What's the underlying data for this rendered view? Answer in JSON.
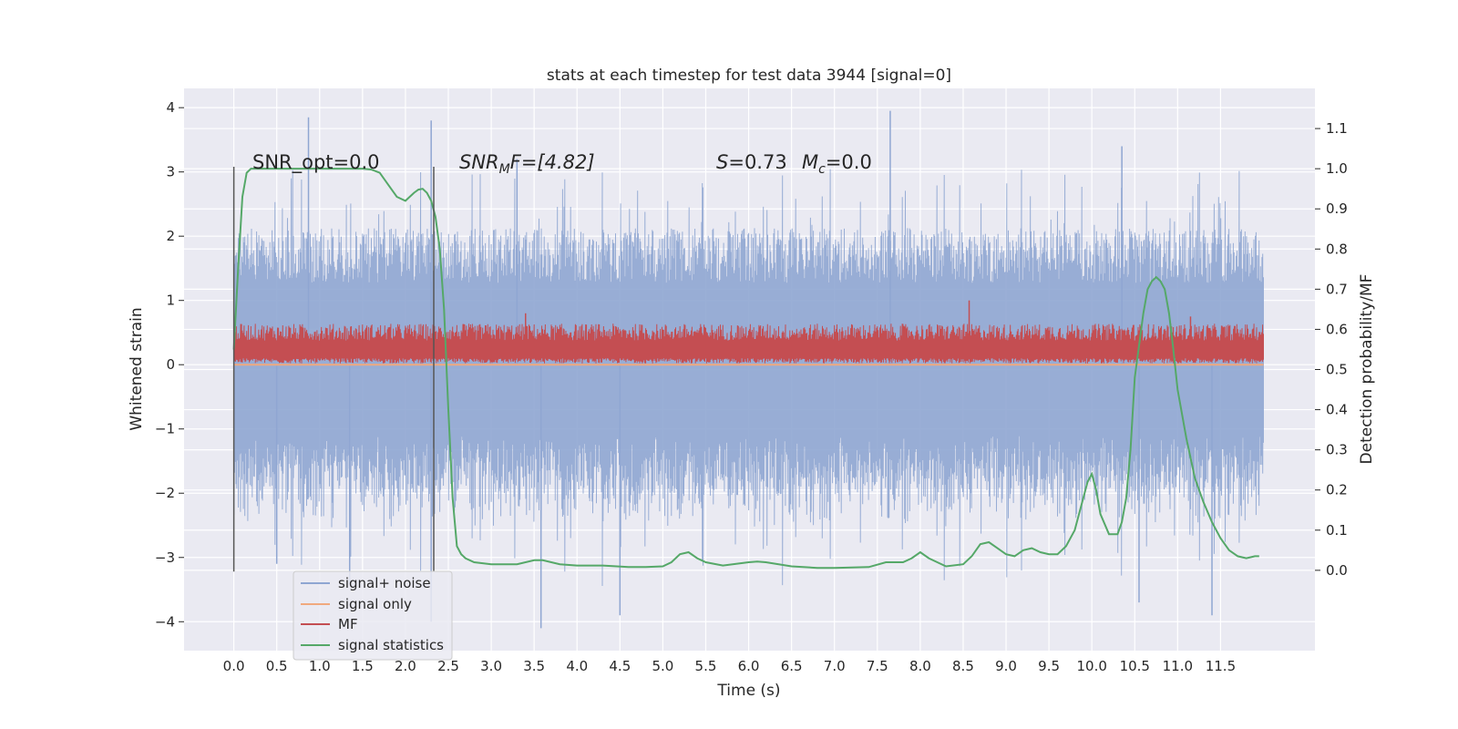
{
  "chart_data": {
    "type": "line",
    "title": "stats at each timestep for test data 3944 [signal=0]",
    "xlabel": "Time (s)",
    "ylabel": "Whitened strain",
    "y2label": "Detection probability/MF",
    "xlim": [
      -0.58,
      12.6
    ],
    "ylim": [
      -4.45,
      4.3
    ],
    "y2lim": [
      -0.2,
      1.2
    ],
    "xticks": [
      "0.0",
      "0.5",
      "1.0",
      "1.5",
      "2.0",
      "2.5",
      "3.0",
      "3.5",
      "4.0",
      "4.5",
      "5.0",
      "5.5",
      "6.0",
      "6.5",
      "7.0",
      "7.5",
      "8.0",
      "8.5",
      "9.0",
      "9.5",
      "10.0",
      "10.5",
      "11.0",
      "11.5"
    ],
    "yticks": [
      "−4",
      "−3",
      "−2",
      "−1",
      "0",
      "1",
      "2",
      "3",
      "4"
    ],
    "y2ticks": [
      "0.0",
      "0.1",
      "0.2",
      "0.3",
      "0.4",
      "0.5",
      "0.6",
      "0.7",
      "0.8",
      "0.9",
      "1.0",
      "1.1"
    ],
    "grid": true,
    "legend_position": "lower-left",
    "annotations": {
      "snr_opt": "SNR_opt=0.0",
      "snr_mf_prefix": "SNR",
      "snr_mf_sub": "M",
      "snr_mf_rest": "F=[4.82]",
      "s_var": "S",
      "s_rest": "=0.73",
      "mc_var": "M",
      "mc_sub": "c",
      "mc_rest": "=0.0"
    },
    "vlines": [
      0.0,
      2.33
    ],
    "series": [
      {
        "name": "signal+ noise",
        "color": "#8fa6d2",
        "axis": "left",
        "style": "noise",
        "x_range": [
          0.0,
          12.0
        ],
        "amplitude": 1.7,
        "peaks": [
          [
            0.87,
            3.85
          ],
          [
            0.5,
            -3.1
          ],
          [
            2.3,
            3.8
          ],
          [
            2.3,
            -4.0
          ],
          [
            3.58,
            -4.1
          ],
          [
            7.65,
            3.95
          ],
          [
            11.4,
            -3.9
          ],
          [
            10.35,
            3.4
          ],
          [
            10.55,
            -3.7
          ],
          [
            4.5,
            -3.9
          ],
          [
            1.35,
            -3.4
          ],
          [
            3.3,
            3.2
          ]
        ]
      },
      {
        "name": "signal only",
        "color": "#f0a97e",
        "axis": "left",
        "style": "line",
        "x": [
          0.0,
          12.0
        ],
        "y": [
          0.0,
          0.0
        ]
      },
      {
        "name": "MF",
        "color": "#c44e52",
        "axis": "left",
        "style": "band",
        "x_range": [
          0.0,
          12.0
        ],
        "band": [
          0.02,
          0.58
        ],
        "peaks": [
          [
            8.57,
            1.0
          ],
          [
            3.4,
            0.8
          ],
          [
            11.15,
            0.75
          ]
        ]
      },
      {
        "name": "signal statistics",
        "color": "#55a868",
        "axis": "right",
        "style": "line",
        "x": [
          0.0,
          0.05,
          0.1,
          0.15,
          0.2,
          0.3,
          0.5,
          0.8,
          1.0,
          1.3,
          1.5,
          1.6,
          1.7,
          1.8,
          1.9,
          2.0,
          2.05,
          2.1,
          2.15,
          2.2,
          2.25,
          2.3,
          2.35,
          2.4,
          2.45,
          2.5,
          2.55,
          2.6,
          2.65,
          2.7,
          2.8,
          3.0,
          3.3,
          3.5,
          3.6,
          3.8,
          4.0,
          4.3,
          4.6,
          4.8,
          5.0,
          5.1,
          5.2,
          5.3,
          5.4,
          5.5,
          5.7,
          6.0,
          6.1,
          6.2,
          6.5,
          6.8,
          7.0,
          7.4,
          7.6,
          7.8,
          7.9,
          8.0,
          8.1,
          8.3,
          8.5,
          8.6,
          8.7,
          8.8,
          8.9,
          9.0,
          9.1,
          9.2,
          9.3,
          9.4,
          9.5,
          9.6,
          9.7,
          9.8,
          9.9,
          9.95,
          10.0,
          10.05,
          10.1,
          10.2,
          10.3,
          10.35,
          10.4,
          10.45,
          10.5,
          10.6,
          10.65,
          10.7,
          10.75,
          10.8,
          10.85,
          10.9,
          10.95,
          11.0,
          11.1,
          11.2,
          11.3,
          11.4,
          11.5,
          11.6,
          11.7,
          11.8,
          11.9,
          11.95
        ],
        "y": [
          0.55,
          0.75,
          0.93,
          0.99,
          1.0,
          1.0,
          1.0,
          1.0,
          1.0,
          1.0,
          1.0,
          0.998,
          0.99,
          0.96,
          0.93,
          0.92,
          0.93,
          0.94,
          0.948,
          0.95,
          0.94,
          0.92,
          0.88,
          0.8,
          0.65,
          0.4,
          0.18,
          0.06,
          0.04,
          0.03,
          0.02,
          0.015,
          0.015,
          0.025,
          0.025,
          0.015,
          0.012,
          0.012,
          0.008,
          0.008,
          0.01,
          0.02,
          0.04,
          0.045,
          0.03,
          0.02,
          0.012,
          0.02,
          0.022,
          0.02,
          0.01,
          0.006,
          0.006,
          0.008,
          0.02,
          0.02,
          0.03,
          0.045,
          0.03,
          0.01,
          0.015,
          0.035,
          0.065,
          0.07,
          0.055,
          0.04,
          0.035,
          0.05,
          0.055,
          0.045,
          0.04,
          0.04,
          0.06,
          0.1,
          0.18,
          0.22,
          0.24,
          0.2,
          0.14,
          0.09,
          0.09,
          0.12,
          0.18,
          0.3,
          0.48,
          0.64,
          0.7,
          0.72,
          0.73,
          0.72,
          0.7,
          0.64,
          0.55,
          0.45,
          0.33,
          0.23,
          0.17,
          0.12,
          0.08,
          0.05,
          0.035,
          0.03,
          0.035,
          0.035
        ]
      }
    ]
  }
}
